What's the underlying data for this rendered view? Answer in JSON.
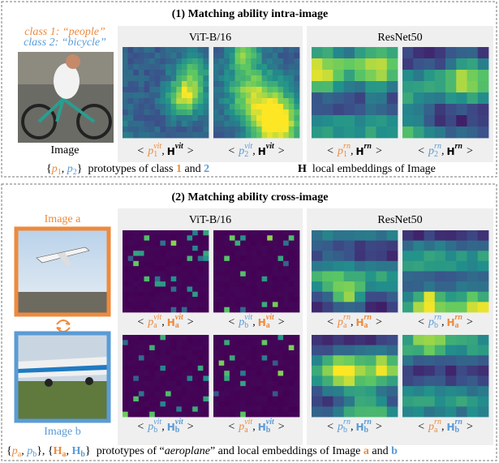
{
  "colors": {
    "1": "#ee8a3c",
    "2": "#5b9bd5",
    "a": "#ee8a3c",
    "b": "#5b9bd5"
  },
  "caption_open": "<",
  "caption_sep": ",",
  "caption_close": ">",
  "proto_symbol": "p",
  "embed_symbol": "H",
  "sections": [
    {
      "title": "(1) Matching ability intra-image",
      "side_labels": [
        {
          "text": "class 1: “people”",
          "key": "1"
        },
        {
          "text": "class 2: “bicycle”",
          "key": "2"
        },
        {
          "text": "Image"
        }
      ],
      "panels": [
        {
          "name": "ViT-B/16",
          "captions": [
            {
              "proto_sub": "1",
              "proto_sup": "vit",
              "embed_sup": "vit"
            },
            {
              "proto_sub": "2",
              "proto_sup": "vit",
              "embed_sup": "vit"
            }
          ]
        },
        {
          "name": "ResNet50",
          "captions": [
            {
              "proto_sub": "1",
              "proto_sup": "rn",
              "embed_sup": "rn"
            },
            {
              "proto_sub": "2",
              "proto_sup": "rn",
              "embed_sup": "rn"
            }
          ]
        }
      ],
      "legend": [
        [
          {
            "text": "{"
          },
          {
            "text": "p",
            "sub": "1",
            "style": "proto",
            "key": "1"
          },
          {
            "text": ", "
          },
          {
            "text": "p",
            "sub": "2",
            "style": "proto",
            "key": "2"
          },
          {
            "text": "}"
          },
          {
            "text": "  prototypes of class "
          },
          {
            "text": "1",
            "style": "bold",
            "key": "1"
          },
          {
            "text": " and "
          },
          {
            "text": "2",
            "style": "bold",
            "key": "2"
          }
        ],
        [
          {
            "text": "H",
            "style": "bold"
          },
          {
            "text": "  local embeddings of Image"
          }
        ]
      ]
    },
    {
      "title": "(2) Matching ability cross-image",
      "side_labels": [
        {
          "text": "Image a",
          "key": "a"
        },
        {
          "text": "Image b",
          "key": "b"
        }
      ],
      "panels": [
        {
          "name": "ViT-B/16",
          "captions": [
            {
              "proto_sub": "a",
              "proto_sup": "vit",
              "embed_sub": "a",
              "embed_sup": "vit"
            },
            {
              "proto_sub": "b",
              "proto_sup": "vit",
              "embed_sub": "a",
              "embed_sup": "vit"
            },
            {
              "proto_sub": "b",
              "proto_sup": "vit",
              "embed_sub": "b",
              "embed_sup": "vit"
            },
            {
              "proto_sub": "a",
              "proto_sup": "vit",
              "embed_sub": "b",
              "embed_sup": "vit"
            }
          ]
        },
        {
          "name": "ResNet50",
          "captions": [
            {
              "proto_sub": "a",
              "proto_sup": "rn",
              "embed_sub": "a",
              "embed_sup": "rn"
            },
            {
              "proto_sub": "b",
              "proto_sup": "rn",
              "embed_sub": "a",
              "embed_sup": "rn"
            },
            {
              "proto_sub": "b",
              "proto_sup": "rn",
              "embed_sub": "b",
              "embed_sup": "rn"
            },
            {
              "proto_sub": "a",
              "proto_sup": "rn",
              "embed_sub": "b",
              "embed_sup": "rn"
            }
          ]
        }
      ],
      "legend": [
        [
          {
            "text": "{"
          },
          {
            "text": "p",
            "sub": "a",
            "style": "proto",
            "key": "a"
          },
          {
            "text": ", "
          },
          {
            "text": "p",
            "sub": "b",
            "style": "proto",
            "key": "b"
          },
          {
            "text": "}, {"
          },
          {
            "text": "H",
            "sub": "a",
            "style": "bold",
            "key": "a"
          },
          {
            "text": ", "
          },
          {
            "text": "H",
            "sub": "b",
            "style": "bold",
            "key": "b"
          },
          {
            "text": "}"
          },
          {
            "text": "  prototypes of “"
          },
          {
            "text": "aeroplane",
            "style": "italic"
          },
          {
            "text": "” and local embeddings of Image "
          },
          {
            "text": "a",
            "style": "bold",
            "key": "a"
          },
          {
            "text": " and "
          },
          {
            "text": "b",
            "style": "bold",
            "key": "b"
          }
        ]
      ]
    }
  ]
}
